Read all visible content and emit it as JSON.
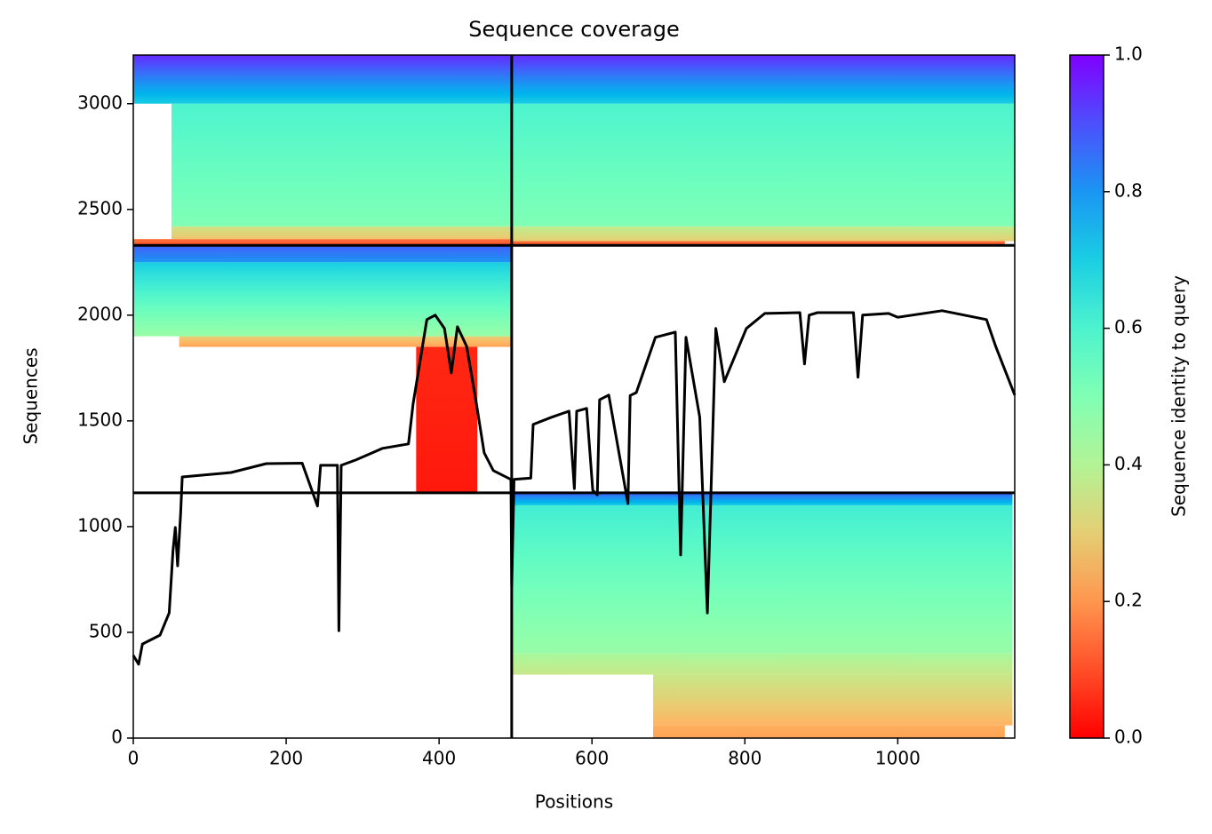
{
  "chart_data": {
    "type": "coverage",
    "title": "Sequence coverage",
    "x_label": "Positions",
    "y_label": "Sequences",
    "xlim": [
      0,
      1153
    ],
    "ylim": [
      0,
      3230
    ],
    "xticks": [
      0,
      200,
      400,
      600,
      800,
      1000
    ],
    "yticks": [
      0,
      500,
      1000,
      1500,
      2000,
      2500,
      3000
    ],
    "colormap": "rainbow_r",
    "colorbar": {
      "label": "Sequence identity to query",
      "lim": [
        0,
        1
      ],
      "ticks": [
        {
          "value": 0,
          "label": "0.0"
        },
        0.2,
        0.4,
        0.6,
        0.8,
        {
          "value": 1,
          "label": "1.0"
        }
      ]
    },
    "chain_breaks": {
      "x": [
        495
      ],
      "y": [
        1160,
        2330
      ]
    },
    "blocks": [
      {
        "x": [
          680,
          1140
        ],
        "y": [
          0,
          60
        ],
        "identity": [
          0.22,
          0.24
        ]
      },
      {
        "x": [
          680,
          1150
        ],
        "y": [
          60,
          300
        ],
        "identity": [
          0.25,
          0.36
        ]
      },
      {
        "x": [
          495,
          1150
        ],
        "y": [
          300,
          400
        ],
        "identity": [
          0.36,
          0.42
        ]
      },
      {
        "x": [
          495,
          1150
        ],
        "y": [
          400,
          1100
        ],
        "identity": [
          0.45,
          0.62
        ]
      },
      {
        "x": [
          495,
          1150
        ],
        "y": [
          1100,
          1160
        ],
        "identity": [
          0.7,
          0.88
        ]
      },
      {
        "x": [
          370,
          450
        ],
        "y": [
          1160,
          1850
        ],
        "identity": [
          0.03,
          0.05
        ]
      },
      {
        "x": [
          60,
          495
        ],
        "y": [
          1850,
          1900
        ],
        "identity": [
          0.22,
          0.3
        ]
      },
      {
        "x": [
          0,
          495
        ],
        "y": [
          1900,
          2250
        ],
        "identity": [
          0.45,
          0.7
        ]
      },
      {
        "x": [
          0,
          495
        ],
        "y": [
          2250,
          2330
        ],
        "identity": [
          0.8,
          0.88
        ]
      },
      {
        "x": [
          0,
          495
        ],
        "y": [
          2330,
          2360
        ],
        "identity": [
          0.1,
          0.15
        ]
      },
      {
        "x": [
          50,
          495
        ],
        "y": [
          2360,
          2420
        ],
        "identity": [
          0.28,
          0.35
        ]
      },
      {
        "x": [
          50,
          495
        ],
        "y": [
          2420,
          3000
        ],
        "identity": [
          0.5,
          0.6
        ]
      },
      {
        "x": [
          0,
          495
        ],
        "y": [
          3000,
          3230
        ],
        "identity": [
          0.7,
          0.95
        ]
      },
      {
        "x": [
          495,
          1140
        ],
        "y": [
          2330,
          2350
        ],
        "identity": [
          0.1,
          0.15
        ]
      },
      {
        "x": [
          495,
          1153
        ],
        "y": [
          2350,
          2420
        ],
        "identity": [
          0.3,
          0.38
        ]
      },
      {
        "x": [
          495,
          1153
        ],
        "y": [
          2420,
          3000
        ],
        "identity": [
          0.5,
          0.6
        ]
      },
      {
        "x": [
          495,
          1153
        ],
        "y": [
          3000,
          3230
        ],
        "identity": [
          0.7,
          0.95
        ]
      }
    ],
    "coverage": {
      "color": "#000000",
      "x": [
        0,
        7,
        12,
        35,
        47,
        52,
        55,
        58,
        62,
        64,
        93,
        128,
        174,
        221,
        241,
        245,
        267,
        269,
        272,
        291,
        326,
        360,
        366,
        384,
        395,
        407,
        416,
        424,
        436,
        448,
        459,
        471,
        494,
        495,
        498,
        520,
        523,
        547,
        570,
        577,
        580,
        593,
        601,
        607,
        610,
        622,
        647,
        650,
        658,
        683,
        709,
        716,
        723,
        741,
        751,
        762,
        773,
        802,
        826,
        872,
        878,
        884,
        895,
        942,
        948,
        954,
        988,
        1000,
        1058,
        1116,
        1128,
        1153
      ],
      "values": [
        391,
        349,
        445,
        487,
        592,
        887,
        996,
        815,
        1063,
        1235,
        1244,
        1256,
        1298,
        1300,
        1097,
        1290,
        1290,
        508,
        1290,
        1315,
        1370,
        1391,
        1580,
        1979,
        2000,
        1937,
        1727,
        1945,
        1853,
        1601,
        1349,
        1265,
        1223,
        718,
        1223,
        1230,
        1483,
        1517,
        1546,
        1180,
        1546,
        1559,
        1172,
        1150,
        1600,
        1622,
        1109,
        1620,
        1634,
        1895,
        1920,
        866,
        1895,
        1517,
        592,
        1937,
        1685,
        1937,
        2008,
        2012,
        1769,
        2000,
        2012,
        2012,
        1706,
        2000,
        2008,
        1990,
        2021,
        1979,
        1853,
        1622
      ]
    }
  }
}
